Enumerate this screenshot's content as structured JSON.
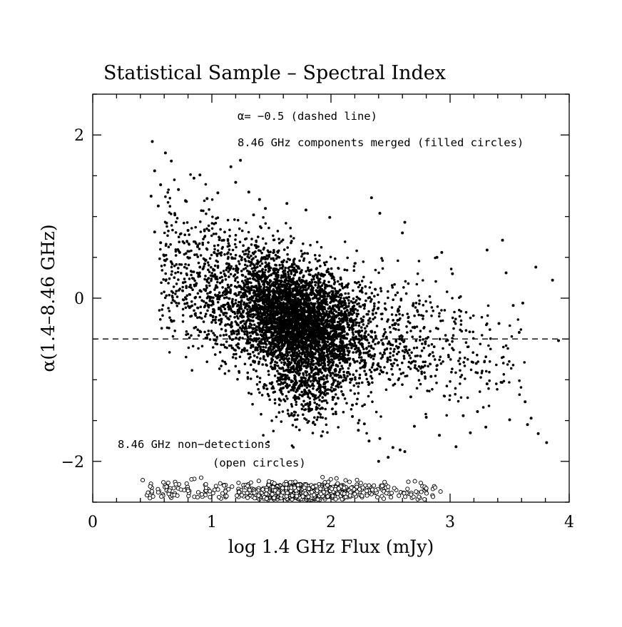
{
  "chart_data": {
    "type": "scatter",
    "title": "Statistical Sample – Spectral Index",
    "xlabel": "log 1.4 GHz Flux (mJy)",
    "ylabel": "α(1.4–8.46 GHz)",
    "xlim": [
      0,
      4
    ],
    "ylim": [
      -2.5,
      2.5
    ],
    "x_ticks": [
      0,
      1,
      2,
      3,
      4
    ],
    "y_ticks": [
      -2,
      0,
      2
    ],
    "x_tick_labels": [
      "0",
      "1",
      "2",
      "3",
      "4"
    ],
    "y_tick_labels": [
      "−2",
      "0",
      "2"
    ],
    "reference_line": {
      "y": -0.5,
      "style": "dashed"
    },
    "annotations": {
      "dashed_line": "α= −0.5 (dashed line)",
      "filled_circles": "8.46 GHz components merged (filled circles)",
      "open_circles_1": "8.46 GHz non−detections",
      "open_circles_2": "(open circles)"
    },
    "grid": false,
    "series": [
      {
        "marker": "filled-circle",
        "points": [
          [
            0.5,
            1.92
          ],
          [
            0.52,
            1.56
          ],
          [
            0.61,
            1.78
          ],
          [
            0.66,
            1.68
          ],
          [
            0.57,
            1.39
          ],
          [
            0.49,
            1.25
          ],
          [
            0.55,
            1.13
          ],
          [
            0.62,
            0.92
          ],
          [
            0.57,
            0.68
          ],
          [
            0.6,
            0.52
          ],
          [
            0.52,
            0.81
          ],
          [
            0.69,
            1.02
          ],
          [
            0.72,
            1.33
          ],
          [
            0.78,
            1.19
          ],
          [
            0.85,
            1.47
          ],
          [
            0.9,
            1.51
          ],
          [
            0.96,
            1.22
          ],
          [
            1.05,
            1.29
          ],
          [
            1.16,
            1.61
          ],
          [
            1.2,
            1.42
          ],
          [
            1.24,
            1.69
          ],
          [
            1.31,
            1.3
          ],
          [
            1.4,
            1.21
          ],
          [
            0.8,
            0.83
          ],
          [
            0.88,
            0.63
          ],
          [
            0.94,
            0.42
          ],
          [
            1.02,
            0.56
          ],
          [
            1.1,
            0.71
          ],
          [
            0.87,
            0.18
          ],
          [
            0.97,
            0.02
          ],
          [
            1.04,
            0.26
          ],
          [
            0.9,
            0.38
          ],
          [
            1.12,
            0.09
          ],
          [
            1.06,
            -0.12
          ],
          [
            0.99,
            -0.21
          ],
          [
            0.76,
            0.19
          ],
          [
            0.73,
            0.56
          ],
          [
            2.1,
            -1.18
          ],
          [
            2.18,
            -1.45
          ],
          [
            2.23,
            -1.62
          ],
          [
            2.32,
            -1.75
          ],
          [
            2.41,
            -1.72
          ],
          [
            2.52,
            -1.83
          ],
          [
            2.58,
            -1.86
          ],
          [
            2.48,
            -1.95
          ],
          [
            2.62,
            -1.88
          ],
          [
            2.7,
            -1.57
          ],
          [
            2.8,
            -1.46
          ],
          [
            2.91,
            -1.68
          ],
          [
            3.05,
            -1.82
          ],
          [
            3.11,
            -1.44
          ],
          [
            3.17,
            -1.65
          ],
          [
            3.23,
            -1.39
          ],
          [
            3.3,
            -1.58
          ],
          [
            3.5,
            -1.49
          ],
          [
            3.63,
            -1.27
          ],
          [
            3.65,
            -1.55
          ],
          [
            3.74,
            -1.66
          ],
          [
            3.81,
            -1.77
          ],
          [
            3.68,
            -1.47
          ],
          [
            3.31,
            -1.05
          ],
          [
            3.22,
            -0.8
          ],
          [
            3.41,
            -0.31
          ],
          [
            3.47,
            0.31
          ],
          [
            3.53,
            -0.09
          ],
          [
            3.61,
            -0.06
          ],
          [
            3.72,
            0.38
          ],
          [
            3.86,
            0.22
          ],
          [
            3.91,
            -0.52
          ],
          [
            3.58,
            -0.42
          ],
          [
            3.44,
            0.71
          ],
          [
            3.31,
            0.59
          ],
          [
            2.62,
            0.93
          ],
          [
            2.41,
            1.04
          ],
          [
            2.34,
            1.23
          ],
          [
            1.63,
            1.16
          ],
          [
            1.79,
            1.08
          ],
          [
            1.99,
            0.99
          ],
          [
            2.6,
            0.8
          ],
          [
            2.93,
            0.56
          ],
          [
            2.89,
            0.5
          ],
          [
            3.02,
            0.3
          ],
          [
            2.18,
            -1.31
          ],
          [
            2.28,
            -1.54
          ],
          [
            2.4,
            -2.0
          ],
          [
            1.45,
            1.1
          ],
          [
            1.35,
            1.02
          ],
          [
            2.24,
            -0.98
          ],
          [
            2.84,
            -0.96
          ],
          [
            1.92,
            -1.69
          ],
          [
            2.67,
            -1.21
          ]
        ]
      },
      {
        "marker": "open-circle",
        "points": [
          [
            0.42,
            -2.23
          ],
          [
            0.55,
            -2.38
          ],
          [
            0.62,
            -2.31
          ],
          [
            0.48,
            -2.45
          ],
          [
            0.71,
            -2.42
          ],
          [
            0.8,
            -2.36
          ],
          [
            0.88,
            -2.44
          ],
          [
            0.95,
            -2.28
          ],
          [
            1.01,
            -2.39
          ],
          [
            1.07,
            -2.27
          ],
          [
            2.8,
            -2.33
          ],
          [
            2.92,
            -2.37
          ],
          [
            2.65,
            -2.25
          ],
          [
            2.57,
            -2.42
          ],
          [
            2.48,
            -2.31
          ],
          [
            2.39,
            -2.44
          ],
          [
            2.3,
            -2.36
          ],
          [
            2.2,
            -2.4
          ],
          [
            1.21,
            -2.42
          ],
          [
            1.3,
            -2.3
          ],
          [
            1.36,
            -2.45
          ],
          [
            0.91,
            -2.2
          ]
        ]
      }
    ]
  }
}
